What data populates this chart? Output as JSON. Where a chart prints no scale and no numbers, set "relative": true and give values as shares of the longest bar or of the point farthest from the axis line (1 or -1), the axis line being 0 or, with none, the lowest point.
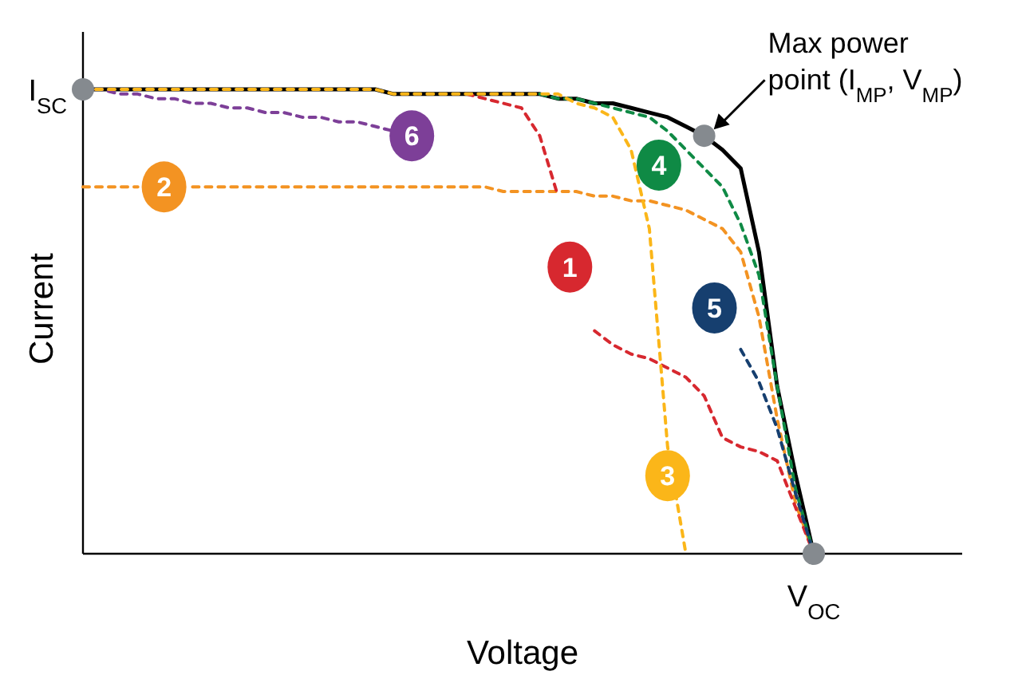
{
  "chart_data": {
    "type": "line",
    "relative": true,
    "xlabel": "Voltage",
    "ylabel": "Current",
    "marker": "none",
    "categories": [
      null,
      null,
      null,
      null,
      null,
      null,
      null,
      null,
      null,
      null,
      null,
      null,
      null,
      null,
      null,
      null,
      null,
      null,
      null,
      null,
      null,
      null,
      null,
      null,
      null,
      null,
      null,
      null,
      null,
      null,
      null,
      null,
      null,
      null,
      null,
      null,
      null,
      null,
      null,
      null,
      null
    ],
    "series": [
      {
        "color": "#000000",
        "line_style": "solid",
        "values": [
          1,
          1,
          1,
          1,
          1,
          1,
          1,
          1,
          1,
          1,
          1,
          1,
          1,
          1,
          1,
          1,
          1,
          0.99,
          0.99,
          0.99,
          0.99,
          0.99,
          0.99,
          0.99,
          0.99,
          0.99,
          0.98,
          0.98,
          0.97,
          0.97,
          0.96,
          0.95,
          0.94,
          0.92,
          0.9,
          0.87,
          0.83,
          0.65,
          0.36,
          0.17,
          0
        ]
      },
      {
        "name": "6",
        "color": "#7d3f98",
        "line_style": "dashed",
        "values": [
          1,
          1,
          0.99,
          0.99,
          0.98,
          0.98,
          0.97,
          0.97,
          0.96,
          0.96,
          0.95,
          0.95,
          0.94,
          0.94,
          0.93,
          0.93,
          0.92,
          0.91,
          0.9,
          null,
          null,
          null,
          null,
          null,
          null,
          null,
          null,
          null,
          null,
          null,
          null,
          null,
          null,
          null,
          null,
          null,
          null,
          null,
          null,
          null,
          null
        ]
      },
      {
        "name": "2",
        "color": "#f39322",
        "line_style": "dashed",
        "values": [
          0.79,
          0.79,
          0.79,
          0.79,
          null,
          null,
          0.79,
          0.79,
          0.79,
          0.79,
          0.79,
          0.79,
          0.79,
          0.79,
          0.79,
          0.79,
          0.79,
          0.79,
          0.79,
          0.79,
          0.79,
          0.79,
          0.79,
          0.78,
          0.78,
          0.78,
          0.78,
          0.78,
          0.77,
          0.77,
          0.76,
          0.76,
          0.75,
          0.74,
          0.72,
          0.7,
          0.65,
          0.51,
          0.29,
          0.11,
          0
        ]
      },
      {
        "name": "1",
        "color": "#d7282f",
        "line_style": "dashed",
        "values": [
          null,
          null,
          null,
          null,
          null,
          null,
          null,
          null,
          null,
          null,
          null,
          null,
          null,
          null,
          null,
          null,
          null,
          null,
          null,
          null,
          null,
          0.99,
          0.98,
          0.97,
          0.96,
          0.9,
          0.77,
          null,
          0.48,
          0.45,
          0.43,
          0.42,
          0.4,
          0.38,
          0.34,
          0.25,
          0.23,
          0.22,
          0.2,
          0.1,
          0
        ]
      },
      {
        "name": "4",
        "color": "#0f8a45",
        "line_style": "dashed",
        "values": [
          null,
          null,
          null,
          null,
          null,
          null,
          null,
          null,
          null,
          null,
          null,
          null,
          null,
          null,
          null,
          null,
          null,
          null,
          null,
          null,
          null,
          null,
          null,
          null,
          null,
          0.99,
          0.98,
          0.98,
          0.97,
          0.96,
          0.95,
          0.94,
          0.91,
          0.87,
          0.83,
          0.79,
          0.71,
          0.6,
          0.36,
          0.14,
          0
        ]
      },
      {
        "name": "5",
        "color": "#163f6f",
        "line_style": "dashed",
        "values": [
          null,
          null,
          null,
          null,
          null,
          null,
          null,
          null,
          null,
          null,
          null,
          null,
          null,
          null,
          null,
          null,
          null,
          null,
          null,
          null,
          null,
          null,
          null,
          null,
          null,
          null,
          null,
          null,
          null,
          null,
          null,
          null,
          null,
          null,
          null,
          null,
          0.44,
          0.37,
          0.27,
          0.13,
          0
        ]
      },
      {
        "name": "3",
        "color": "#fbb619",
        "line_style": "dashed",
        "values": [
          1,
          1,
          1,
          1,
          1,
          1,
          1,
          1,
          1,
          1,
          1,
          1,
          1,
          1,
          1,
          1,
          1,
          0.99,
          0.99,
          0.99,
          0.99,
          0.99,
          0.99,
          0.99,
          0.99,
          0.99,
          0.99,
          0.97,
          0.96,
          0.94,
          0.87,
          0.7,
          0.23,
          0,
          null,
          null,
          null,
          null,
          null,
          null,
          null
        ]
      }
    ],
    "annotations": [
      "I$_{SC}$",
      "V$_{OC}$",
      "Max power point (I$_{MP}$, V$_{MP}$)"
    ]
  }
}
